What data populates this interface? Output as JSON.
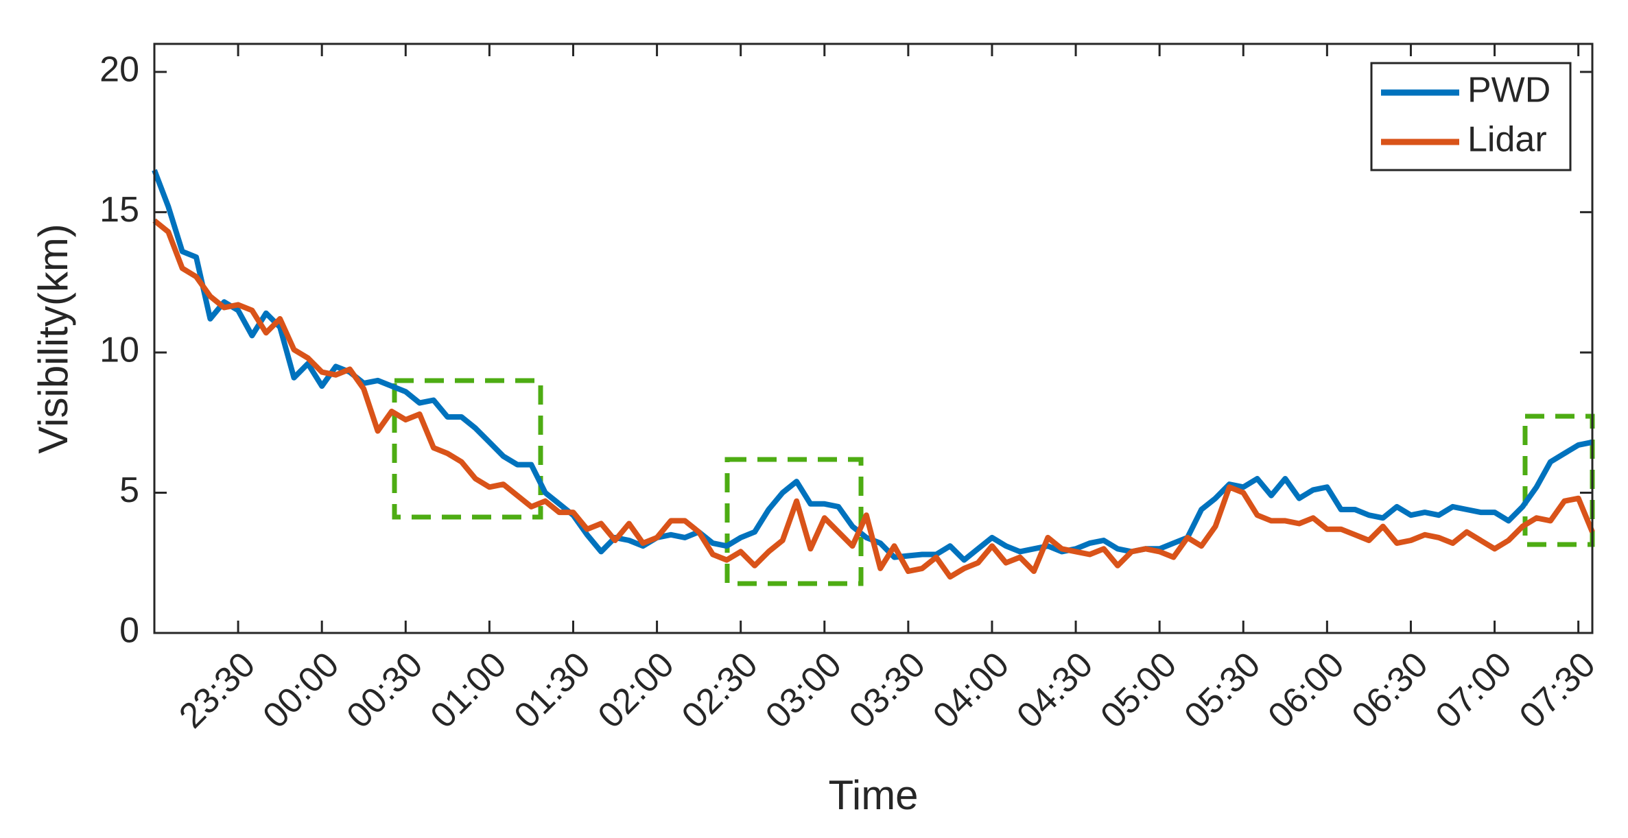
{
  "chart_data": {
    "type": "line",
    "x_label": "Time",
    "y_label": "Visibility(km)",
    "x": [
      "23:00",
      "23:05",
      "23:10",
      "23:15",
      "23:20",
      "23:25",
      "23:30",
      "23:35",
      "23:40",
      "23:45",
      "23:50",
      "23:55",
      "00:00",
      "00:05",
      "00:10",
      "00:15",
      "00:20",
      "00:25",
      "00:30",
      "00:35",
      "00:40",
      "00:45",
      "00:50",
      "00:55",
      "01:00",
      "01:05",
      "01:10",
      "01:15",
      "01:20",
      "01:25",
      "01:30",
      "01:35",
      "01:40",
      "01:45",
      "01:50",
      "01:55",
      "02:00",
      "02:05",
      "02:10",
      "02:15",
      "02:20",
      "02:25",
      "02:30",
      "02:35",
      "02:40",
      "02:45",
      "02:50",
      "02:55",
      "03:00",
      "03:05",
      "03:10",
      "03:15",
      "03:20",
      "03:25",
      "03:30",
      "03:35",
      "03:40",
      "03:45",
      "03:50",
      "03:55",
      "04:00",
      "04:05",
      "04:10",
      "04:15",
      "04:20",
      "04:25",
      "04:30",
      "04:35",
      "04:40",
      "04:45",
      "04:50",
      "04:55",
      "05:00",
      "05:05",
      "05:10",
      "05:15",
      "05:20",
      "05:25",
      "05:30",
      "05:35",
      "05:40",
      "05:45",
      "05:50",
      "05:55",
      "06:00",
      "06:05",
      "06:10",
      "06:15",
      "06:20",
      "06:25",
      "06:30",
      "06:35",
      "06:40",
      "06:45",
      "06:50",
      "06:55",
      "07:00",
      "07:05",
      "07:10",
      "07:15",
      "07:20",
      "07:25",
      "07:30",
      "07:35"
    ],
    "series": [
      {
        "name": "PWD",
        "color": "#0072bd",
        "values": [
          16.5,
          15.2,
          13.6,
          13.4,
          11.2,
          11.8,
          11.5,
          10.6,
          11.4,
          10.9,
          9.1,
          9.6,
          8.8,
          9.5,
          9.3,
          8.9,
          9.0,
          8.8,
          8.6,
          8.2,
          8.3,
          7.7,
          7.7,
          7.3,
          6.8,
          6.3,
          6.0,
          6.0,
          5.0,
          4.6,
          4.2,
          3.5,
          2.9,
          3.4,
          3.3,
          3.1,
          3.4,
          3.5,
          3.4,
          3.6,
          3.2,
          3.1,
          3.4,
          3.6,
          4.4,
          5.0,
          5.4,
          4.6,
          4.6,
          4.5,
          3.8,
          3.4,
          3.2,
          2.7,
          2.75,
          2.8,
          2.8,
          3.1,
          2.6,
          3.0,
          3.4,
          3.1,
          2.9,
          3.0,
          3.1,
          2.9,
          3.0,
          3.2,
          3.3,
          3.0,
          2.9,
          3.0,
          3.0,
          3.2,
          3.4,
          4.4,
          4.8,
          5.3,
          5.2,
          5.5,
          4.9,
          5.5,
          4.8,
          5.1,
          5.2,
          4.4,
          4.4,
          4.2,
          4.1,
          4.5,
          4.2,
          4.3,
          4.2,
          4.5,
          4.4,
          4.3,
          4.3,
          4.0,
          4.5,
          5.2,
          6.1,
          6.4,
          6.7,
          6.8
        ]
      },
      {
        "name": "Lidar",
        "color": "#d95319",
        "values": [
          14.7,
          14.3,
          13.0,
          12.7,
          12.0,
          11.6,
          11.7,
          11.5,
          10.7,
          11.2,
          10.1,
          9.8,
          9.3,
          9.2,
          9.4,
          8.7,
          7.2,
          7.9,
          7.6,
          7.8,
          6.6,
          6.4,
          6.1,
          5.5,
          5.2,
          5.3,
          4.9,
          4.5,
          4.7,
          4.3,
          4.3,
          3.7,
          3.9,
          3.3,
          3.9,
          3.2,
          3.4,
          4.0,
          4.0,
          3.6,
          2.8,
          2.6,
          2.9,
          2.4,
          2.9,
          3.3,
          4.7,
          3.0,
          4.1,
          3.6,
          3.1,
          4.2,
          2.3,
          3.1,
          2.2,
          2.3,
          2.7,
          2.0,
          2.3,
          2.5,
          3.1,
          2.5,
          2.7,
          2.2,
          3.4,
          3.0,
          2.9,
          2.8,
          3.0,
          2.4,
          2.9,
          3.0,
          2.9,
          2.7,
          3.4,
          3.1,
          3.8,
          5.2,
          5.0,
          4.2,
          4.0,
          4.0,
          3.9,
          4.1,
          3.7,
          3.7,
          3.5,
          3.3,
          3.8,
          3.2,
          3.3,
          3.5,
          3.4,
          3.2,
          3.6,
          3.3,
          3.0,
          3.3,
          3.8,
          4.1,
          4.0,
          4.7,
          4.8,
          3.6
        ]
      }
    ],
    "xlim": [
      "23:00",
      "07:35"
    ],
    "xticks": [
      "23:30",
      "00:00",
      "00:30",
      "01:00",
      "01:30",
      "02:00",
      "02:30",
      "03:00",
      "03:30",
      "04:00",
      "04:30",
      "05:00",
      "05:30",
      "06:00",
      "06:30",
      "07:00",
      "07:30"
    ],
    "ylim": [
      0,
      21
    ],
    "yticks": [
      0,
      5,
      10,
      15,
      20
    ],
    "legend": "upper right",
    "grid": false
  }
}
